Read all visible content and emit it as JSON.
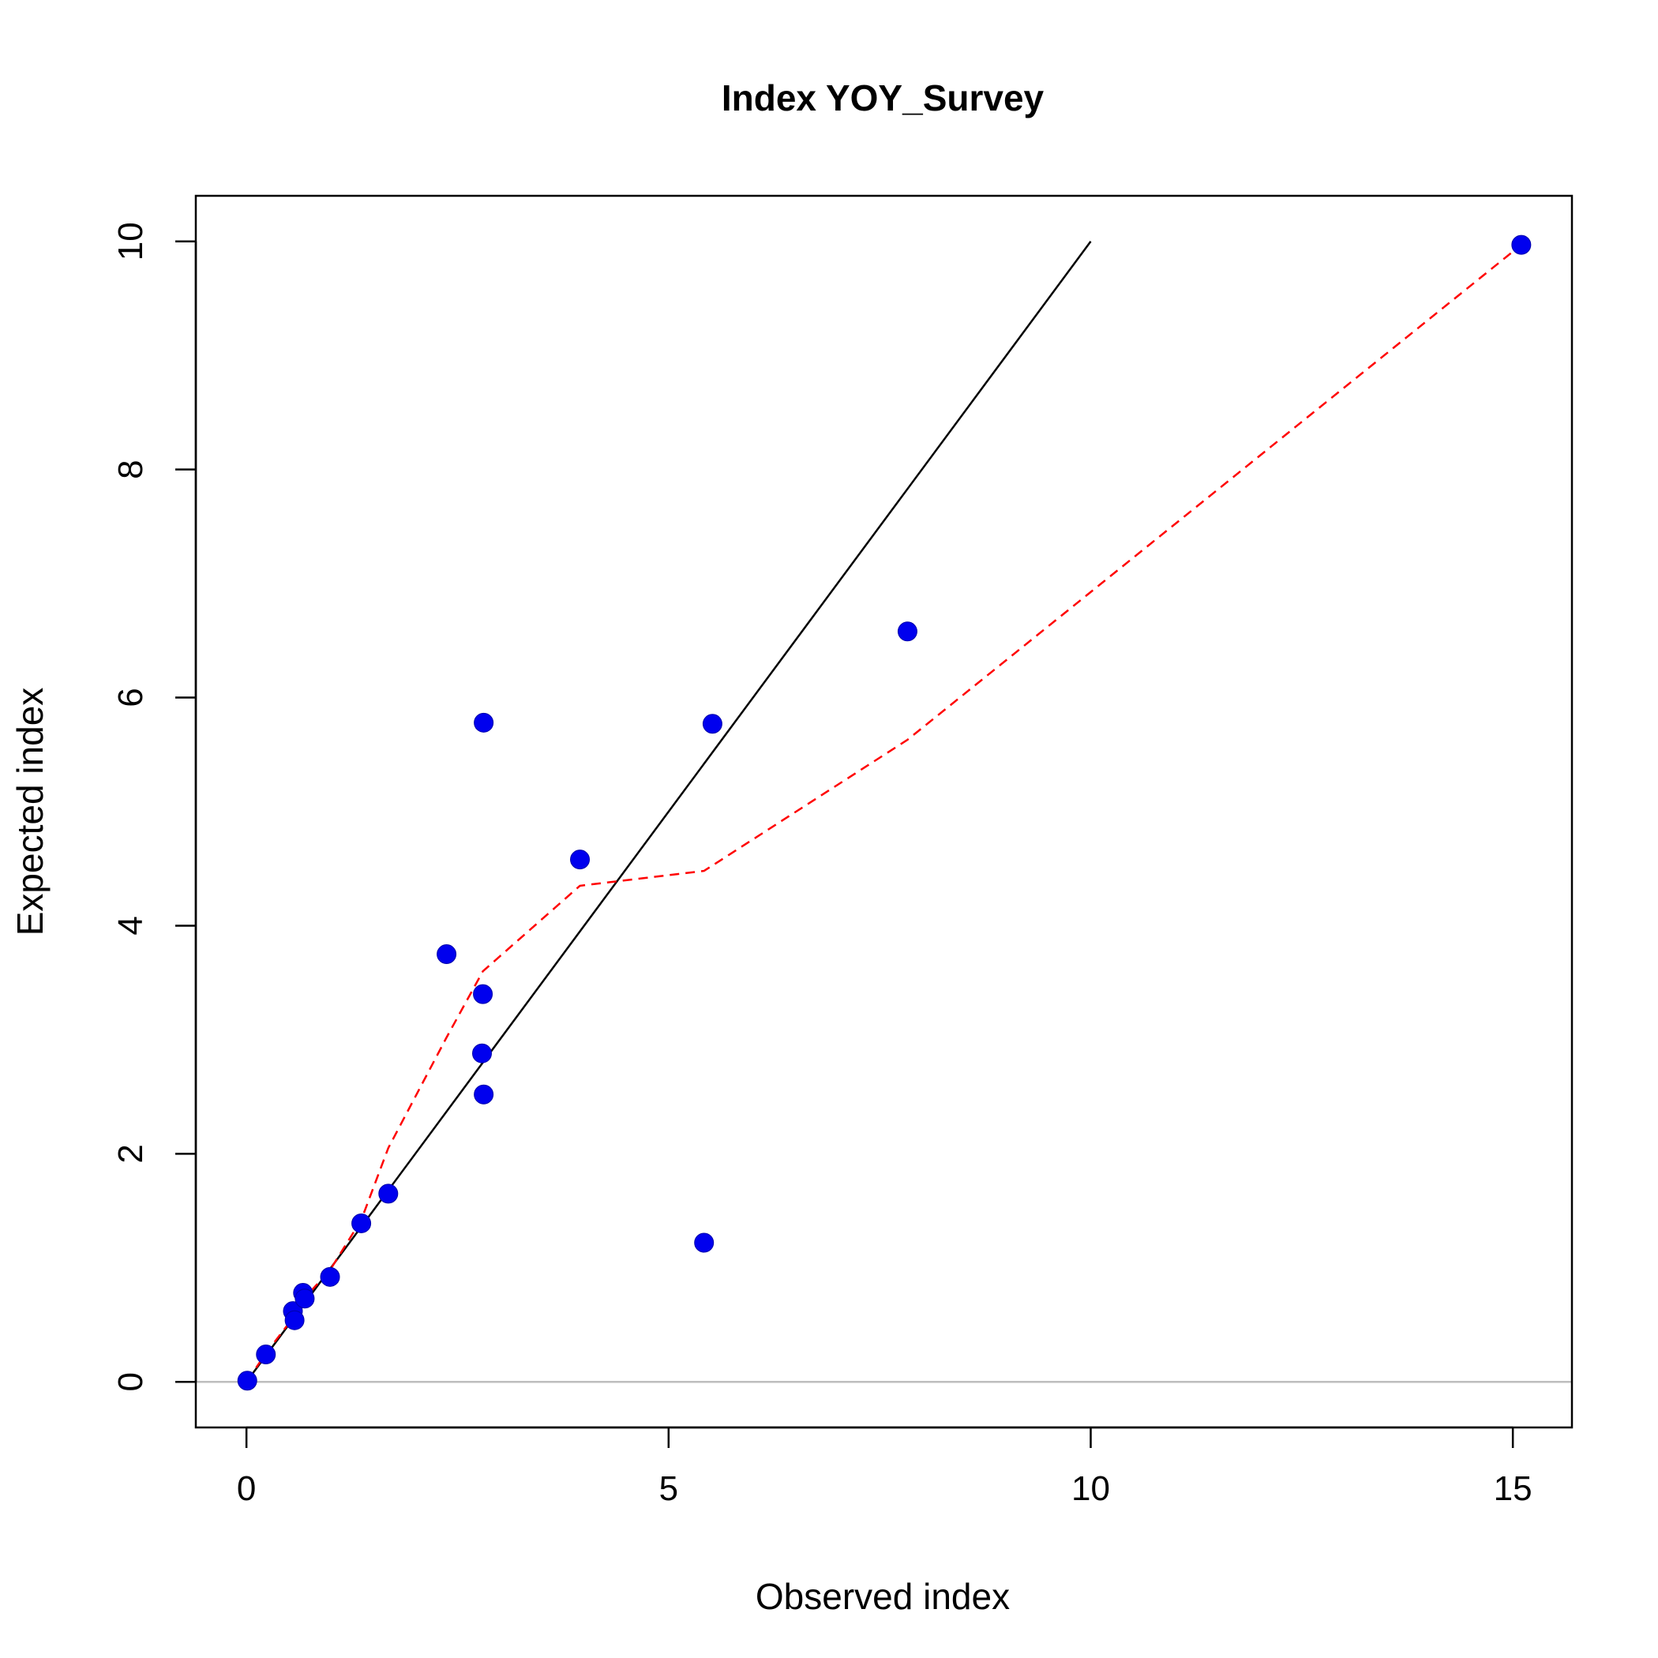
{
  "chart_data": {
    "type": "scatter",
    "title": "Index YOY_Survey",
    "xlabel": "Observed index",
    "ylabel": "Expected index",
    "xlim": [
      -0.6,
      15.7
    ],
    "ylim": [
      -0.4,
      10.4
    ],
    "x_ticks": [
      0,
      5,
      10,
      15
    ],
    "y_ticks": [
      0,
      2,
      4,
      6,
      8,
      10
    ],
    "grid": false,
    "legend": "none",
    "points": {
      "x": [
        0.01,
        0.23,
        0.55,
        0.57,
        0.67,
        0.69,
        0.99,
        1.36,
        1.68,
        2.37,
        2.79,
        2.8,
        2.81,
        2.81,
        3.95,
        5.42,
        5.52,
        7.83,
        15.1
      ],
      "y": [
        0.01,
        0.24,
        0.62,
        0.54,
        0.78,
        0.73,
        0.92,
        1.39,
        1.65,
        3.75,
        2.88,
        3.4,
        2.52,
        5.78,
        4.58,
        1.22,
        5.77,
        6.58,
        9.97
      ],
      "color": "#0000ee"
    },
    "identity_line": {
      "x": [
        0,
        10
      ],
      "y": [
        0,
        10
      ],
      "color": "#000000"
    },
    "zero_line": {
      "y": 0,
      "color": "#bebebe"
    },
    "smooth_line": {
      "x": [
        0.01,
        0.23,
        0.55,
        0.67,
        0.99,
        1.36,
        1.68,
        2.37,
        2.8,
        3.95,
        5.42,
        7.83,
        15.1
      ],
      "y": [
        0.01,
        0.25,
        0.56,
        0.72,
        0.98,
        1.42,
        2.05,
        3.02,
        3.6,
        4.35,
        4.48,
        5.63,
        9.97
      ],
      "color": "#ff0000",
      "style": "dashed"
    }
  }
}
